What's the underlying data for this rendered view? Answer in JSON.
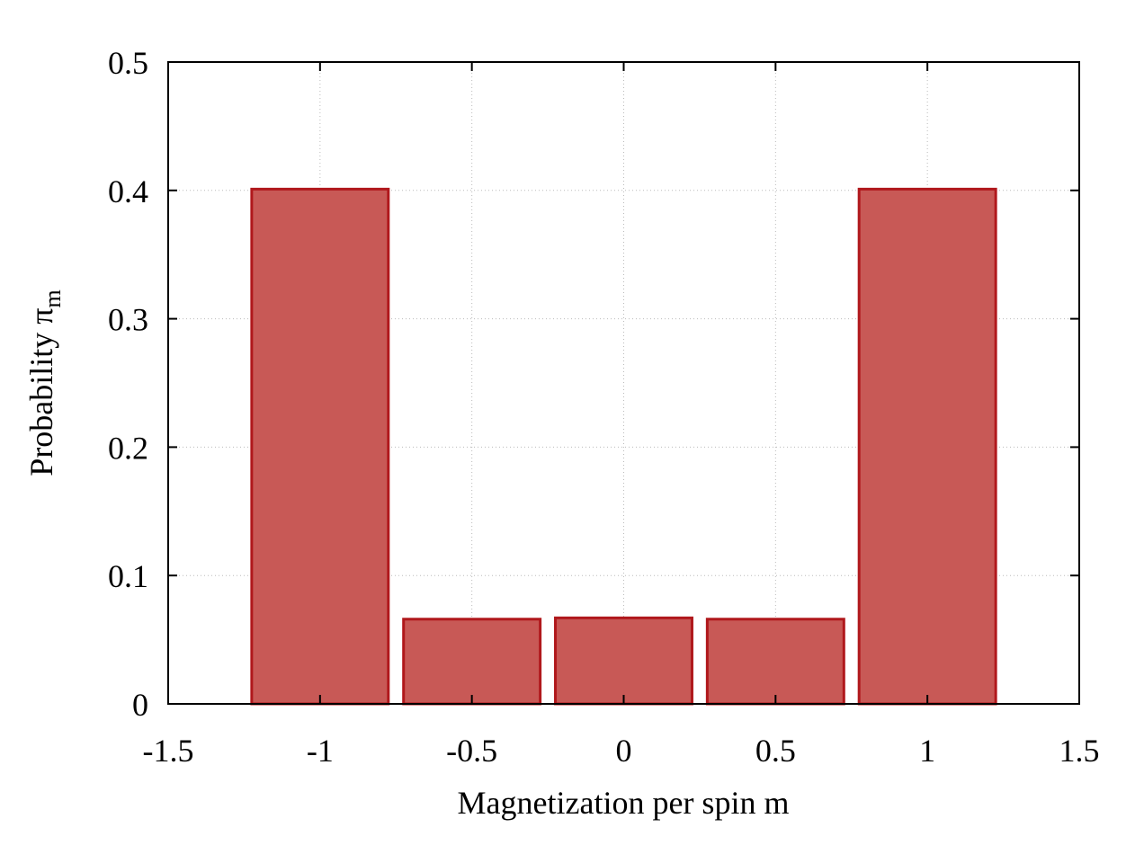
{
  "chart_data": {
    "type": "bar",
    "x": [
      -1,
      -0.5,
      0,
      0.5,
      1
    ],
    "values": [
      0.401,
      0.066,
      0.067,
      0.066,
      0.401
    ],
    "bar_width": 0.45,
    "xlim": [
      -1.5,
      1.5
    ],
    "ylim": [
      0,
      0.5
    ],
    "x_ticks": [
      -1.5,
      -1,
      -0.5,
      0,
      0.5,
      1,
      1.5
    ],
    "x_tick_labels": [
      "-1.5",
      "-1",
      "-0.5",
      "0",
      "0.5",
      "1",
      "1.5"
    ],
    "y_ticks": [
      0,
      0.1,
      0.2,
      0.3,
      0.4,
      0.5
    ],
    "y_tick_labels": [
      "0",
      "0.1",
      "0.2",
      "0.3",
      "0.4",
      "0.5"
    ],
    "xlabel": "Magnetization per spin m",
    "ylabel_main": "Probability π",
    "ylabel_sub": "m",
    "grid": true,
    "legend": "none",
    "colors": {
      "bar_fill": "#c85956",
      "bar_stroke": "#b0181c",
      "grid": "#bbbbbb"
    }
  }
}
